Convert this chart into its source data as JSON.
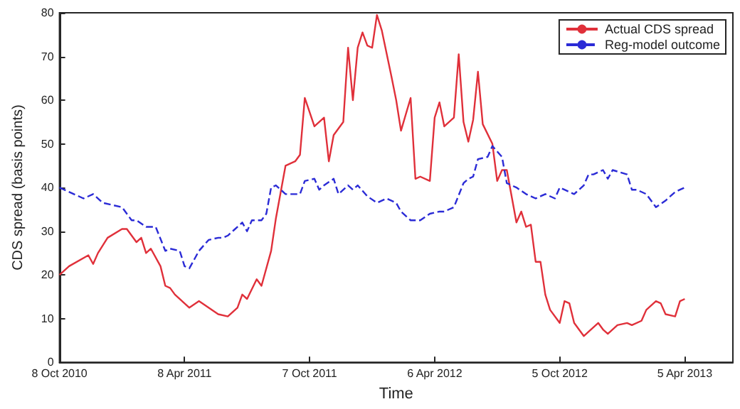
{
  "chart_data": {
    "type": "line",
    "xlabel": "Time",
    "ylabel": "CDS spread (basis points)",
    "xlim": [
      "2010-10-08",
      "2013-06-14"
    ],
    "xticks": [
      {
        "value": "2010-10-08",
        "label": "8 Oct 2010"
      },
      {
        "value": "2011-04-08",
        "label": "8 Apr 2011"
      },
      {
        "value": "2011-10-07",
        "label": "7 Oct 2011"
      },
      {
        "value": "2012-04-06",
        "label": "6 Apr 2012"
      },
      {
        "value": "2012-10-05",
        "label": "5 Oct 2012"
      },
      {
        "value": "2013-04-05",
        "label": "5 Apr 2013"
      }
    ],
    "ylim": [
      0,
      80
    ],
    "yticks": [
      0,
      10,
      20,
      30,
      40,
      50,
      60,
      70,
      80
    ],
    "grid": false,
    "legend": "top right",
    "marker": "none",
    "series": [
      {
        "name": "Actual CDS spread",
        "color": "#e0303a",
        "line_style": "solid",
        "x": [
          "2010-10-08",
          "2010-10-22",
          "2010-11-19",
          "2010-11-26",
          "2010-12-03",
          "2010-12-17",
          "2011-01-07",
          "2011-01-14",
          "2011-01-28",
          "2011-02-04",
          "2011-02-11",
          "2011-02-18",
          "2011-03-04",
          "2011-03-11",
          "2011-03-18",
          "2011-03-25",
          "2011-04-15",
          "2011-04-29",
          "2011-05-13",
          "2011-05-27",
          "2011-06-10",
          "2011-06-24",
          "2011-07-01",
          "2011-07-08",
          "2011-07-22",
          "2011-07-29",
          "2011-08-12",
          "2011-08-19",
          "2011-09-02",
          "2011-09-16",
          "2011-09-23",
          "2011-09-30",
          "2011-10-14",
          "2011-10-28",
          "2011-11-04",
          "2011-11-11",
          "2011-11-25",
          "2011-12-02",
          "2011-12-09",
          "2011-12-16",
          "2011-12-23",
          "2011-12-30",
          "2012-01-06",
          "2012-01-13",
          "2012-01-20",
          "2012-02-03",
          "2012-02-10",
          "2012-02-17",
          "2012-03-02",
          "2012-03-09",
          "2012-03-16",
          "2012-03-30",
          "2012-04-06",
          "2012-04-13",
          "2012-04-20",
          "2012-05-04",
          "2012-05-11",
          "2012-05-18",
          "2012-05-25",
          "2012-06-01",
          "2012-06-08",
          "2012-06-15",
          "2012-06-29",
          "2012-07-06",
          "2012-07-13",
          "2012-07-20",
          "2012-08-03",
          "2012-08-10",
          "2012-08-17",
          "2012-08-24",
          "2012-08-31",
          "2012-09-07",
          "2012-09-14",
          "2012-09-21",
          "2012-10-05",
          "2012-10-12",
          "2012-10-19",
          "2012-10-26",
          "2012-11-09",
          "2012-11-16",
          "2012-11-30",
          "2012-12-07",
          "2012-12-14",
          "2012-12-28",
          "2013-01-11",
          "2013-01-18",
          "2013-02-01",
          "2013-02-08",
          "2013-02-22",
          "2013-03-01",
          "2013-03-08",
          "2013-03-22",
          "2013-03-29",
          "2013-04-05"
        ],
        "values": [
          20,
          22,
          24.5,
          22.5,
          25,
          28.5,
          30.5,
          30.5,
          27.5,
          28.5,
          25,
          26,
          22,
          17.5,
          17,
          15.5,
          12.5,
          14,
          12.5,
          11,
          10.5,
          12.5,
          15.5,
          14.5,
          19,
          17.5,
          25.5,
          33,
          45,
          46,
          47.5,
          60.5,
          54,
          56,
          46,
          52,
          55,
          72,
          60,
          72,
          75.5,
          72.5,
          72,
          79.5,
          76,
          65.5,
          60,
          53,
          60.5,
          42,
          42.5,
          41.5,
          56,
          59.5,
          54,
          56,
          70.5,
          55,
          50.5,
          55.5,
          66.5,
          54.5,
          50,
          41.5,
          44,
          44,
          32,
          34.5,
          31,
          31.5,
          23,
          23,
          15.5,
          12,
          9,
          14,
          13.5,
          9,
          6,
          7,
          9,
          7.5,
          6.5,
          8.5,
          9,
          8.5,
          9.5,
          12,
          14,
          13.5,
          11,
          10.5,
          14,
          14.5
        ]
      },
      {
        "name": "Reg-model outcome",
        "color": "#2b2bd6",
        "line_style": "dashed",
        "x": [
          "2010-10-08",
          "2010-11-12",
          "2010-11-26",
          "2010-12-10",
          "2010-12-24",
          "2011-01-07",
          "2011-01-21",
          "2011-01-28",
          "2011-02-11",
          "2011-02-25",
          "2011-03-11",
          "2011-03-18",
          "2011-04-01",
          "2011-04-08",
          "2011-04-15",
          "2011-04-29",
          "2011-05-13",
          "2011-05-27",
          "2011-06-03",
          "2011-06-10",
          "2011-07-01",
          "2011-07-08",
          "2011-07-15",
          "2011-07-29",
          "2011-08-05",
          "2011-08-12",
          "2011-08-19",
          "2011-09-02",
          "2011-09-23",
          "2011-09-30",
          "2011-10-14",
          "2011-10-21",
          "2011-10-28",
          "2011-11-11",
          "2011-11-18",
          "2011-12-02",
          "2011-12-09",
          "2011-12-16",
          "2011-12-30",
          "2012-01-13",
          "2012-01-27",
          "2012-02-10",
          "2012-02-17",
          "2012-03-02",
          "2012-03-16",
          "2012-03-30",
          "2012-04-13",
          "2012-04-20",
          "2012-05-04",
          "2012-05-18",
          "2012-05-25",
          "2012-06-01",
          "2012-06-08",
          "2012-06-22",
          "2012-06-29",
          "2012-07-13",
          "2012-07-20",
          "2012-08-03",
          "2012-08-17",
          "2012-08-31",
          "2012-09-14",
          "2012-09-28",
          "2012-10-05",
          "2012-10-12",
          "2012-10-26",
          "2012-11-09",
          "2012-11-16",
          "2012-11-23",
          "2012-12-07",
          "2012-12-14",
          "2012-12-21",
          "2013-01-11",
          "2013-01-18",
          "2013-01-25",
          "2013-02-08",
          "2013-02-15",
          "2013-02-22",
          "2013-03-08",
          "2013-03-22",
          "2013-03-29",
          "2013-04-05"
        ],
        "values": [
          40,
          37.5,
          38.5,
          36.5,
          36,
          35.5,
          32.5,
          32.5,
          31,
          31,
          25.5,
          26,
          25.5,
          22,
          21.5,
          25.5,
          28,
          28.5,
          28.5,
          29,
          32,
          30,
          32.5,
          32.5,
          34,
          40,
          40.5,
          38.5,
          38.5,
          41.5,
          42,
          39.5,
          40.5,
          42,
          38.5,
          40.5,
          39.5,
          40.5,
          38,
          36.5,
          37.5,
          36.5,
          34.5,
          32.5,
          32.5,
          34,
          34.5,
          34.5,
          35.5,
          41,
          42,
          42.5,
          46.5,
          47,
          49.5,
          47,
          41,
          40,
          38.5,
          37.5,
          38.5,
          37.5,
          40,
          39.5,
          38.5,
          40.5,
          43,
          43,
          44,
          42,
          44,
          43,
          39.5,
          39.5,
          38.5,
          37,
          35.5,
          37,
          39,
          39.5,
          40
        ]
      }
    ]
  }
}
